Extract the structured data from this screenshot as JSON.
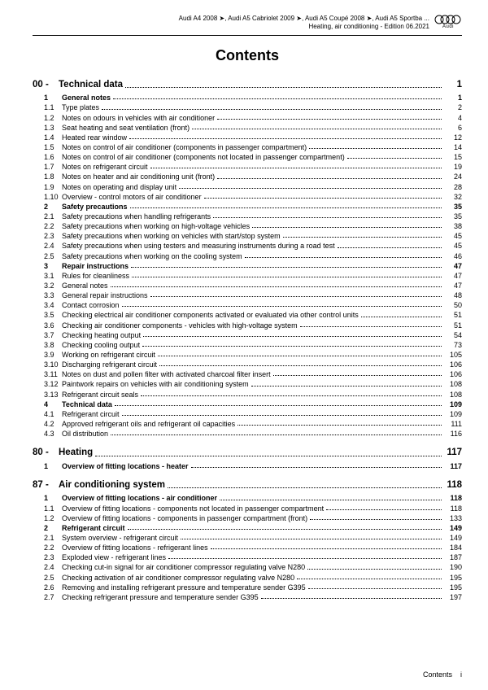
{
  "header": {
    "line1": "Audi A4 2008 ➤, Audi A5 Cabriolet 2009 ➤, Audi A5 Coupé 2008 ➤, Audi A5 Sportba ...",
    "line2": "Heating, air conditioning - Edition 06.2021",
    "logo_label": "Audi"
  },
  "title": "Contents",
  "sections": [
    {
      "num": "00 -",
      "title": "Technical data",
      "page": "1",
      "entries": [
        {
          "n": "1",
          "t": "General notes",
          "p": "1",
          "b": true
        },
        {
          "n": "1.1",
          "t": "Type plates",
          "p": "2"
        },
        {
          "n": "1.2",
          "t": "Notes on odours in vehicles with air conditioner",
          "p": "4"
        },
        {
          "n": "1.3",
          "t": "Seat heating and seat ventilation (front)",
          "p": "6"
        },
        {
          "n": "1.4",
          "t": "Heated rear window",
          "p": "12"
        },
        {
          "n": "1.5",
          "t": "Notes on control of air conditioner (components in passenger compartment)",
          "p": "14"
        },
        {
          "n": "1.6",
          "t": "Notes on control of air conditioner (components not located in passenger compartment)",
          "p": "15"
        },
        {
          "n": "1.7",
          "t": "Notes on refrigerant circuit",
          "p": "19"
        },
        {
          "n": "1.8",
          "t": "Notes on heater and air conditioning unit (front)",
          "p": "24"
        },
        {
          "n": "1.9",
          "t": "Notes on operating and display unit",
          "p": "28"
        },
        {
          "n": "1.10",
          "t": "Overview - control motors of air conditioner",
          "p": "32"
        },
        {
          "n": "2",
          "t": "Safety precautions",
          "p": "35",
          "b": true
        },
        {
          "n": "2.1",
          "t": "Safety precautions when handling refrigerants",
          "p": "35"
        },
        {
          "n": "2.2",
          "t": "Safety precautions when working on high-voltage vehicles",
          "p": "38"
        },
        {
          "n": "2.3",
          "t": "Safety precautions when working on vehicles with start/stop system",
          "p": "45"
        },
        {
          "n": "2.4",
          "t": "Safety precautions when using testers and measuring instruments during a road test",
          "p": "45"
        },
        {
          "n": "2.5",
          "t": "Safety precautions when working on the cooling system",
          "p": "46"
        },
        {
          "n": "3",
          "t": "Repair instructions",
          "p": "47",
          "b": true
        },
        {
          "n": "3.1",
          "t": "Rules for cleanliness",
          "p": "47"
        },
        {
          "n": "3.2",
          "t": "General notes",
          "p": "47"
        },
        {
          "n": "3.3",
          "t": "General repair instructions",
          "p": "48"
        },
        {
          "n": "3.4",
          "t": "Contact corrosion",
          "p": "50"
        },
        {
          "n": "3.5",
          "t": "Checking electrical air conditioner components activated or evaluated via other control units",
          "p": "51",
          "ml": true
        },
        {
          "n": "3.6",
          "t": "Checking air conditioner components - vehicles with high-voltage system",
          "p": "51"
        },
        {
          "n": "3.7",
          "t": "Checking heating output",
          "p": "54"
        },
        {
          "n": "3.8",
          "t": "Checking cooling output",
          "p": "73"
        },
        {
          "n": "3.9",
          "t": "Working on refrigerant circuit",
          "p": "105"
        },
        {
          "n": "3.10",
          "t": "Discharging refrigerant circuit",
          "p": "106"
        },
        {
          "n": "3.11",
          "t": "Notes on dust and pollen filter with activated charcoal filter insert",
          "p": "106"
        },
        {
          "n": "3.12",
          "t": "Paintwork repairs on vehicles with air conditioning system",
          "p": "108"
        },
        {
          "n": "3.13",
          "t": "Refrigerant circuit seals",
          "p": "108"
        },
        {
          "n": "4",
          "t": "Technical data",
          "p": "109",
          "b": true
        },
        {
          "n": "4.1",
          "t": "Refrigerant circuit",
          "p": "109"
        },
        {
          "n": "4.2",
          "t": "Approved refrigerant oils and refrigerant oil capacities",
          "p": "111"
        },
        {
          "n": "4.3",
          "t": "Oil distribution",
          "p": "116"
        }
      ]
    },
    {
      "num": "80 -",
      "title": "Heating",
      "page": "117",
      "entries": [
        {
          "n": "1",
          "t": "Overview of fitting locations - heater",
          "p": "117",
          "b": true
        }
      ]
    },
    {
      "num": "87 -",
      "title": "Air conditioning system",
      "page": "118",
      "entries": [
        {
          "n": "1",
          "t": "Overview of fitting locations - air conditioner",
          "p": "118",
          "b": true
        },
        {
          "n": "1.1",
          "t": "Overview of fitting locations - components not located in passenger compartment",
          "p": "118"
        },
        {
          "n": "1.2",
          "t": "Overview of fitting locations - components in passenger compartment (front)",
          "p": "133"
        },
        {
          "n": "2",
          "t": "Refrigerant circuit",
          "p": "149",
          "b": true
        },
        {
          "n": "2.1",
          "t": "System overview - refrigerant circuit",
          "p": "149"
        },
        {
          "n": "2.2",
          "t": "Overview of fitting locations - refrigerant lines",
          "p": "184"
        },
        {
          "n": "2.3",
          "t": "Exploded view - refrigerant lines",
          "p": "187"
        },
        {
          "n": "2.4",
          "t": "Checking cut-in signal for air conditioner compressor regulating valve N280",
          "p": "190"
        },
        {
          "n": "2.5",
          "t": "Checking activation of air conditioner compressor regulating valve N280",
          "p": "195"
        },
        {
          "n": "2.6",
          "t": "Removing and installing refrigerant pressure and temperature sender G395",
          "p": "195"
        },
        {
          "n": "2.7",
          "t": "Checking refrigerant pressure and temperature sender G395",
          "p": "197"
        }
      ]
    }
  ],
  "footer": {
    "label": "Contents",
    "page_roman": "i"
  }
}
